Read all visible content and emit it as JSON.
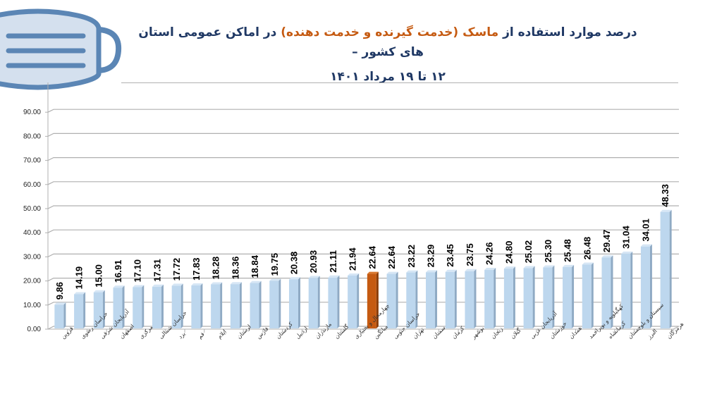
{
  "header": {
    "title_line1_part1": "درصد موارد استفاده از ",
    "title_line1_accent": "ماسک (خدمت گیرنده و خدمت دهنده)",
    "title_line1_part2": " در اماکن عمومی استان های کشور –",
    "title_line2": "۱۲ تا ۱۹ مرداد ۱۴۰۱",
    "icon": "face-mask-icon"
  },
  "colors": {
    "bar": "#bdd7ee",
    "bar_side": "#8faac4",
    "bar_top": "#d6e6f5",
    "highlight": "#c55a11",
    "highlight_side": "#8a3c08",
    "title": "#1f3864",
    "accent": "#c55a11",
    "grid": "#b0b0b0",
    "mask_fill": "#d4e0ee",
    "mask_stroke": "#5b86b5"
  },
  "chart_data": {
    "type": "bar",
    "title": "درصد موارد استفاده از ماسک (خدمت گیرنده و خدمت دهنده) در اماکن عمومی استان های کشور – ۱۲ تا ۱۹ مرداد ۱۴۰۱",
    "xlabel": "",
    "ylabel": "",
    "ylim": [
      0,
      100
    ],
    "yticks": [
      "0.00",
      "10.00",
      "20.00",
      "30.00",
      "40.00",
      "50.00",
      "60.00",
      "70.00",
      "80.00",
      "90.00"
    ],
    "grid": true,
    "legend": null,
    "highlight_category": "میانگین",
    "categories": [
      "قزوین",
      "خراسان رضوی",
      "آذربایجان شرقی",
      "اصفهان",
      "مرکزی",
      "خراسان شمالی",
      "یزد",
      "قم",
      "ایلام",
      "لرستان",
      "فارس",
      "کردستان",
      "اردبیل",
      "مازندران",
      "گلستان",
      "چهارمحال و بختیاری",
      "میانگین",
      "خراسان جنوبی",
      "تهران",
      "سمنان",
      "کرمان",
      "بوشهر",
      "زنجان",
      "گیلان",
      "آذربایجان غربی",
      "خوزستان",
      "همدان",
      "کهگیلویه و بویراحمد",
      "کرمانشاه",
      "سیستان و بلوچستان",
      "البرز",
      "هرمزگان"
    ],
    "values": [
      9.86,
      14.19,
      15.0,
      16.91,
      17.1,
      17.31,
      17.72,
      17.83,
      18.28,
      18.36,
      18.84,
      19.75,
      20.38,
      20.93,
      21.11,
      21.94,
      22.64,
      22.64,
      23.22,
      23.29,
      23.45,
      23.75,
      24.26,
      24.8,
      25.02,
      25.3,
      25.48,
      26.48,
      29.47,
      31.04,
      34.01,
      48.33
    ],
    "value_labels": [
      "9.86",
      "14.19",
      "15.00",
      "16.91",
      "17.10",
      "17.31",
      "17.72",
      "17.83",
      "18.28",
      "18.36",
      "18.84",
      "19.75",
      "20.38",
      "20.93",
      "21.11",
      "21.94",
      "22.64",
      "22.64",
      "23.22",
      "23.29",
      "23.45",
      "23.75",
      "24.26",
      "24.80",
      "25.02",
      "25.30",
      "25.48",
      "26.48",
      "29.47",
      "31.04",
      "34.01",
      "48.33"
    ]
  }
}
